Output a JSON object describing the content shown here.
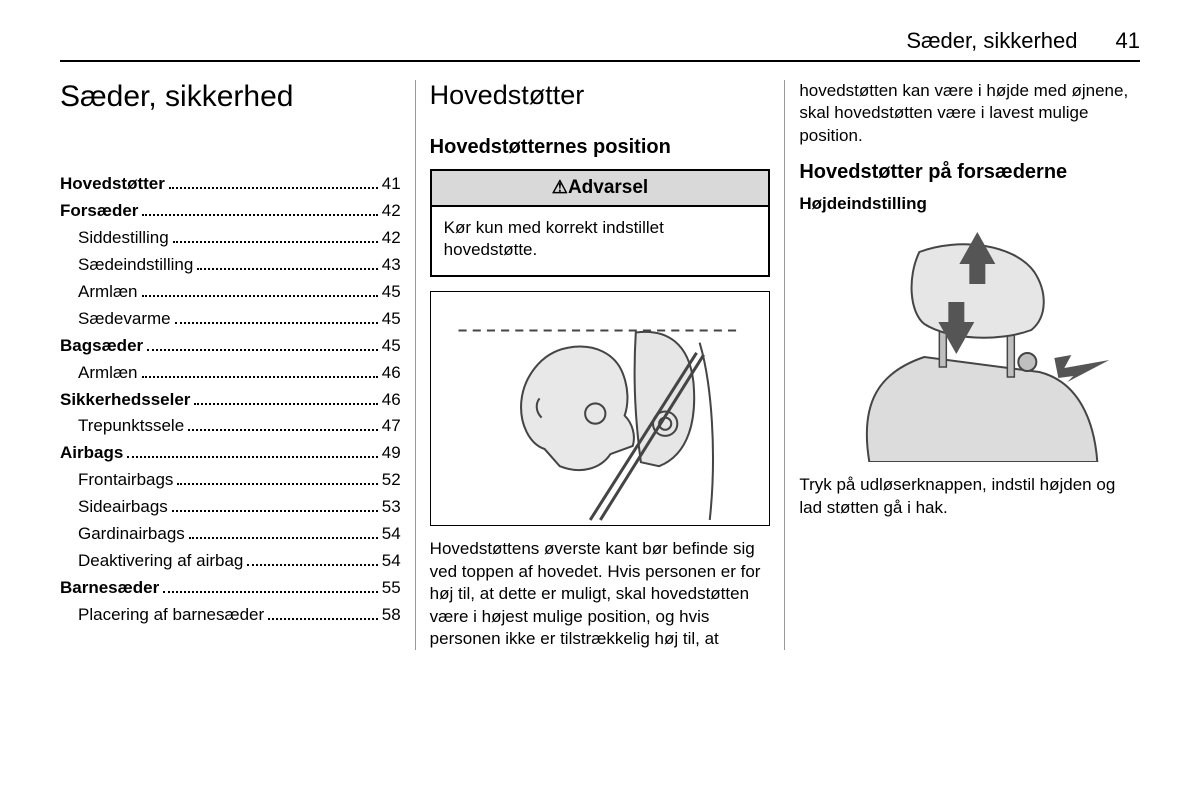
{
  "header": {
    "title": "Sæder, sikkerhed",
    "page_number": "41"
  },
  "col1": {
    "main_title": "Sæder, sikkerhed",
    "toc": [
      {
        "label": "Hovedstøtter",
        "page": "41",
        "bold": true,
        "sub": false
      },
      {
        "label": "Forsæder",
        "page": "42",
        "bold": true,
        "sub": false
      },
      {
        "label": "Siddestilling",
        "page": "42",
        "bold": false,
        "sub": true
      },
      {
        "label": "Sædeindstilling",
        "page": "43",
        "bold": false,
        "sub": true
      },
      {
        "label": "Armlæn",
        "page": "45",
        "bold": false,
        "sub": true
      },
      {
        "label": "Sædevarme",
        "page": "45",
        "bold": false,
        "sub": true
      },
      {
        "label": "Bagsæder",
        "page": "45",
        "bold": true,
        "sub": false
      },
      {
        "label": "Armlæn",
        "page": "46",
        "bold": false,
        "sub": true
      },
      {
        "label": "Sikkerhedsseler",
        "page": "46",
        "bold": true,
        "sub": false
      },
      {
        "label": "Trepunktssele",
        "page": "47",
        "bold": false,
        "sub": true
      },
      {
        "label": "Airbags",
        "page": "49",
        "bold": true,
        "sub": false
      },
      {
        "label": "Frontairbags",
        "page": "52",
        "bold": false,
        "sub": true
      },
      {
        "label": "Sideairbags",
        "page": "53",
        "bold": false,
        "sub": true
      },
      {
        "label": "Gardinairbags",
        "page": "54",
        "bold": false,
        "sub": true
      },
      {
        "label": "Deaktivering af airbag",
        "page": "54",
        "bold": false,
        "sub": true
      },
      {
        "label": "Barnesæder",
        "page": "55",
        "bold": true,
        "sub": false
      },
      {
        "label": "Placering af barnesæder",
        "page": "58",
        "bold": false,
        "sub": true
      }
    ]
  },
  "col2": {
    "section_title": "Hovedstøtter",
    "subsection_title": "Hovedstøtternes position",
    "warning_label": "Advarsel",
    "warning_text": "Kør kun med korrekt indstillet hovedstøtte.",
    "body_text": "Hovedstøttens øverste kant bør befinde sig ved toppen af hovedet. Hvis personen er for høj til, at dette er muligt, skal hovedstøtten være i højest mulige position, og hvis personen ikke er tilstrækkelig høj til, at"
  },
  "col3": {
    "continuation": "hovedstøtten kan være i højde med øjnene, skal hovedstøtten være i lavest mulige position.",
    "subsection_title": "Hovedstøtter på forsæderne",
    "subsub": "Højdeindstilling",
    "body_text": "Tryk på udløserknappen, indstil højden og lad støtten gå i hak."
  },
  "style": {
    "body_fontsize": 17,
    "title_fontsize": 30,
    "section_fontsize": 27,
    "colors": {
      "text": "#000000",
      "background": "#ffffff",
      "warning_bg": "#d9d9d9",
      "divider": "#999999",
      "illustration_fill": "#e6e6e6",
      "illustration_fill2": "#dcdcdc",
      "illustration_stroke": "#454545",
      "arrow_fill": "#555555"
    }
  }
}
